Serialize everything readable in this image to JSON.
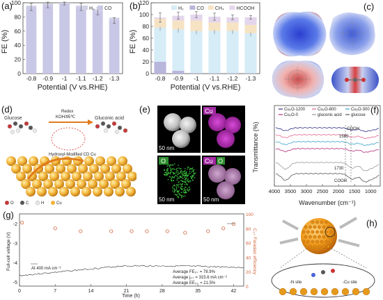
{
  "panels": {
    "a": {
      "label": "(a)",
      "chart_data": {
        "type": "bar",
        "categories": [
          "-0.8",
          "-0.9",
          "-1",
          "-1.1",
          "-1.2",
          "-1.3"
        ],
        "series": [
          {
            "name": "H₂",
            "values": [
              2,
              2,
              1,
              2,
              3,
              4
            ]
          },
          {
            "name": "CO",
            "values": [
              94,
              97,
              99,
              94,
              88,
              75
            ]
          }
        ],
        "errors": [
          5,
          4,
          2,
          5,
          5,
          4
        ],
        "xlabel": "Potential (V vs.RHE)",
        "ylabel": "FE (%)",
        "ylim": [
          0,
          100
        ],
        "yticks": [
          "0",
          "20",
          "40",
          "60",
          "80",
          "100"
        ],
        "legend_position": "top-right",
        "colors": {
          "H2": "#d0d0e6",
          "CO": "#c9c7e6"
        }
      }
    },
    "b": {
      "label": "(b)",
      "chart_data": {
        "type": "bar",
        "categories": [
          "-0.8",
          "-0.9",
          "-1",
          "-1.1",
          "-1.2",
          "-1.3"
        ],
        "series": [
          {
            "name": "H₂",
            "values": [
              58,
              70,
              71,
              72,
              72,
              68
            ]
          },
          {
            "name": "CO",
            "values": [
              20,
              5,
              1,
              0.5,
              0.5,
              0.5
            ]
          },
          {
            "name": "CH₄",
            "values": [
              15,
              15,
              18,
              14,
              14,
              14
            ]
          },
          {
            "name": "HCOOH",
            "values": [
              2,
              8,
              10,
              10,
              9,
              13
            ]
          }
        ],
        "errors": [
          8,
          6,
          5,
          6,
          4,
          3
        ],
        "xlabel": "Potential (V vs.RHE)",
        "ylabel": "FE (%)",
        "ylim": [
          0,
          120
        ],
        "yticks": [
          "0",
          "20",
          "40",
          "60",
          "80",
          "100",
          "120"
        ],
        "legend_position": "top",
        "colors": {
          "H2": "#d6ecf6",
          "CO": "#b9b6dc",
          "CH4": "#f6e3c4",
          "HCOOH": "#e4d6ec"
        }
      }
    },
    "c": {
      "label": "(c)"
    },
    "d": {
      "label": "(d)",
      "text": {
        "glucose": "Glucose",
        "redox": "Redox",
        "condition": "KOH/95℃",
        "gluconic": "Gluconic acid",
        "hydroxyl": "Hydroxyl-Modified CD Cu",
        "legend_o": "O",
        "legend_c": "C",
        "legend_h": "H",
        "legend_cu": "Cu"
      }
    },
    "e": {
      "label": "(e)",
      "scale": "50 nm",
      "cu": "Cu",
      "o": "O",
      "cu_o_cu": "Cu",
      "cu_o_o": "O"
    },
    "f": {
      "label": "(f)",
      "chart_data": {
        "type": "line",
        "series": [
          {
            "name": "Cu₂O-1200",
            "color": "#2b2b86"
          },
          {
            "name": "Cu₂O-800",
            "color": "#e0658e"
          },
          {
            "name": "Cu₂O-300",
            "color": "#3aa2c8"
          },
          {
            "name": "Cu₂O-0",
            "color": "#b22d7d"
          },
          {
            "name": "gluconic acid",
            "color": "#999999"
          },
          {
            "name": "glucose",
            "color": "#555555"
          }
        ],
        "xlabel": "Wavenumber (cm⁻¹)",
        "ylabel": "Transmittance (%)",
        "xticks": [
          "4000",
          "3500",
          "3000",
          "2500",
          "2000",
          "1500",
          "1000"
        ],
        "annotations": [
          "COOH",
          "1585",
          "1730",
          "COOH"
        ]
      }
    },
    "g": {
      "label": "(g)",
      "chart_data": {
        "type": "line",
        "xlabel": "Time (h)",
        "ylabel": "Full-cell voltage (V)",
        "ylabel_right": "C₂₊ Faradaic efficiency",
        "xticks": [
          "0",
          "7",
          "14",
          "21",
          "28",
          "35",
          "42"
        ],
        "yticks": [
          "-2",
          "-3",
          "-4",
          "-5"
        ],
        "yticks_right": [
          "100",
          "80",
          "60",
          "40",
          "20",
          "0"
        ],
        "annotation": "At 400 mA cm⁻²",
        "stats": [
          "Average FE₂₊ = 78.9%",
          "Average j₂₊ = 315.6 mA cm⁻²",
          "Average EE₂₊ = 21.5%"
        ],
        "fe_points_x": [
          0.5,
          7,
          12,
          18,
          22,
          25,
          29,
          32.5,
          37,
          40,
          42
        ],
        "fe_points_y": [
          88,
          80,
          76,
          76,
          76,
          76,
          76,
          74,
          76,
          80,
          86
        ]
      }
    },
    "h": {
      "label": "(h)",
      "n_site": "-N site",
      "cu_site": "-Cu site"
    }
  }
}
